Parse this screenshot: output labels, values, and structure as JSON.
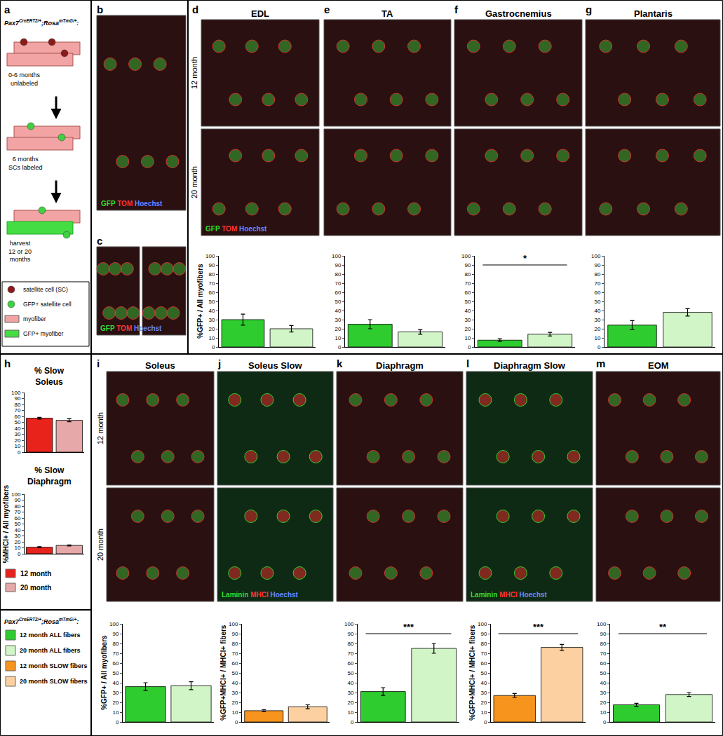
{
  "chart_data": [
    {
      "type": "bar",
      "title": "EDL",
      "y_label": "%GFP+ / All myofibers",
      "categories": [
        null,
        null
      ],
      "values": [
        30,
        20
      ],
      "errors": [
        6,
        3.5
      ],
      "colors": [
        "#2ecc2e",
        "#d2f5c8"
      ],
      "ylim": [
        0,
        100
      ],
      "yticks": [
        0,
        10,
        20,
        30,
        40,
        50,
        60,
        70,
        80,
        90,
        100
      ],
      "grid": false,
      "tick_labels": "y"
    },
    {
      "type": "bar",
      "title": "TA",
      "categories": [
        null,
        null
      ],
      "values": [
        25,
        16.5
      ],
      "errors": [
        5,
        2.5
      ],
      "colors": [
        "#2ecc2e",
        "#d2f5c8"
      ],
      "ylim": [
        0,
        100
      ],
      "yticks": [
        0,
        10,
        20,
        30,
        40,
        50,
        60,
        70,
        80,
        90,
        100
      ],
      "grid": false,
      "tick_labels": "y"
    },
    {
      "type": "bar",
      "title": "Gastrocnemius",
      "categories": [
        null,
        null
      ],
      "values": [
        7.5,
        14
      ],
      "errors": [
        1.5,
        2
      ],
      "colors": [
        "#2ecc2e",
        "#d2f5c8"
      ],
      "ylim": [
        0,
        100
      ],
      "yticks": [
        0,
        10,
        20,
        30,
        40,
        50,
        60,
        70,
        80,
        90,
        100
      ],
      "grid": false,
      "tick_labels": "y",
      "annotations": [
        {
          "text": "*"
        }
      ]
    },
    {
      "type": "bar",
      "title": "Plantaris",
      "categories": [
        null,
        null
      ],
      "values": [
        24,
        38
      ],
      "errors": [
        5,
        4
      ],
      "colors": [
        "#2ecc2e",
        "#d2f5c8"
      ],
      "ylim": [
        0,
        100
      ],
      "yticks": [
        0,
        10,
        20,
        30,
        40,
        50,
        60,
        70,
        80,
        90,
        100
      ],
      "grid": false,
      "tick_labels": "y"
    },
    {
      "type": "bar",
      "title": "% Slow Soleus",
      "categories": [
        null,
        null
      ],
      "values": [
        57,
        53.5
      ],
      "errors": [
        1.5,
        2.5
      ],
      "colors": [
        "#e8231c",
        "#e6a8a8"
      ],
      "ylim": [
        0,
        100
      ],
      "yticks": [
        0,
        10,
        20,
        30,
        40,
        50,
        60,
        70,
        80,
        90,
        100
      ],
      "grid": false,
      "tick_labels": "y"
    },
    {
      "type": "bar",
      "title": "% Slow Diaphragm",
      "y_label": "%MHCI+ / All myofibers",
      "categories": [
        null,
        null
      ],
      "values": [
        11,
        14
      ],
      "errors": [
        1,
        1
      ],
      "colors": [
        "#e8231c",
        "#e6a8a8"
      ],
      "ylim": [
        0,
        100
      ],
      "yticks": [
        0,
        10,
        20,
        30,
        40,
        50,
        60,
        70,
        80,
        90,
        100
      ],
      "grid": false,
      "tick_labels": "y"
    },
    {
      "type": "bar",
      "title": "Soleus",
      "y_label": "%GFP+ / All myofibers",
      "categories": [
        null,
        null
      ],
      "values": [
        36,
        37
      ],
      "errors": [
        4,
        4
      ],
      "colors": [
        "#2ecc2e",
        "#d2f5c8"
      ],
      "ylim": [
        0,
        100
      ],
      "yticks": [
        0,
        10,
        20,
        30,
        40,
        50,
        60,
        70,
        80,
        90,
        100
      ],
      "grid": false,
      "tick_labels": "y"
    },
    {
      "type": "bar",
      "title": "Soleus Slow",
      "y_label": "%GFP+MHCI+ / MHCI+ fibers",
      "categories": [
        null,
        null
      ],
      "values": [
        11.5,
        15.5
      ],
      "errors": [
        1,
        2
      ],
      "colors": [
        "#f7941d",
        "#fcd0a1"
      ],
      "ylim": [
        0,
        100
      ],
      "yticks": [
        0,
        10,
        20,
        30,
        40,
        50,
        60,
        70,
        80,
        90,
        100
      ],
      "grid": false,
      "tick_labels": "y"
    },
    {
      "type": "bar",
      "title": "Diaphragm",
      "categories": [
        null,
        null
      ],
      "values": [
        31,
        75
      ],
      "errors": [
        4,
        5
      ],
      "colors": [
        "#2ecc2e",
        "#d2f5c8"
      ],
      "ylim": [
        0,
        100
      ],
      "yticks": [
        0,
        10,
        20,
        30,
        40,
        50,
        60,
        70,
        80,
        90,
        100
      ],
      "grid": false,
      "tick_labels": "y",
      "annotations": [
        {
          "text": "***"
        }
      ]
    },
    {
      "type": "bar",
      "title": "Diaphragm Slow",
      "y_label": "%GFP+MHCI+ / MHCI+ fibers",
      "categories": [
        null,
        null
      ],
      "values": [
        27,
        76
      ],
      "errors": [
        2,
        3
      ],
      "colors": [
        "#f7941d",
        "#fcd0a1"
      ],
      "ylim": [
        0,
        100
      ],
      "yticks": [
        0,
        10,
        20,
        30,
        40,
        50,
        60,
        70,
        80,
        90,
        100
      ],
      "grid": false,
      "tick_labels": "y",
      "annotations": [
        {
          "text": "***"
        }
      ]
    },
    {
      "type": "bar",
      "title": "EOM",
      "categories": [
        null,
        null
      ],
      "values": [
        17.5,
        28
      ],
      "errors": [
        1.5,
        2
      ],
      "colors": [
        "#2ecc2e",
        "#d2f5c8"
      ],
      "ylim": [
        0,
        100
      ],
      "yticks": [
        0,
        10,
        20,
        30,
        40,
        50,
        60,
        70,
        80,
        90,
        100
      ],
      "grid": false,
      "tick_labels": "y",
      "annotations": [
        {
          "text": "**"
        }
      ]
    }
  ],
  "figure": {
    "genotype": [
      {
        "text": "Pax7"
      },
      {
        "text": "CreERT2/+",
        "sup": true
      },
      {
        "text": ";Rosa"
      },
      {
        "text": "mTmG/+",
        "sup": true
      },
      {
        "text": ":"
      }
    ],
    "schematic": {
      "letter": "a",
      "steps": [
        {
          "lines": [
            "0-6 months",
            "unlabeled"
          ]
        },
        {
          "lines": [
            "6 months",
            "SCs labeled"
          ]
        },
        {
          "lines": [
            "harvest",
            "12 or 20",
            "months"
          ]
        }
      ],
      "key": [
        {
          "text": "satellite cell (SC)",
          "marker": "circle",
          "color": "#8b1a1a"
        },
        {
          "text": "GFP+ satellite cell",
          "marker": "circle",
          "color": "#3fd13f"
        },
        {
          "text": "myofiber",
          "marker": "square",
          "color": "#f2a3a3"
        },
        {
          "text": "GFP+ myofiber",
          "marker": "square",
          "color": "#44dd44"
        }
      ]
    },
    "image_panels": [
      {
        "letter": "b",
        "stains": [
          {
            "text": "GFP",
            "color": "#33dd33"
          },
          {
            "text": "TOM",
            "color": "#ff3333"
          },
          {
            "text": "Hoechst",
            "color": "#6688ff"
          }
        ]
      },
      {
        "letter": "c",
        "stains": [
          {
            "text": "GFP",
            "color": "#33dd33"
          },
          {
            "text": "TOM",
            "color": "#ff3333"
          },
          {
            "text": "Hoechst",
            "color": "#6688ff"
          }
        ]
      },
      {
        "letter": "d",
        "stains": [
          {
            "text": "GFP",
            "color": "#33dd33"
          },
          {
            "text": "TOM",
            "color": "#ff3333"
          },
          {
            "text": "Hoechst",
            "color": "#6688ff"
          }
        ]
      },
      {
        "letter": "e"
      },
      {
        "letter": "f"
      },
      {
        "letter": "g"
      },
      {
        "letter": "i"
      },
      {
        "letter": "j",
        "stains": [
          {
            "text": "Laminin",
            "color": "#33dd33"
          },
          {
            "text": "MHCI",
            "color": "#ff3333"
          },
          {
            "text": "Hoechst",
            "color": "#6688ff"
          }
        ]
      },
      {
        "letter": "k"
      },
      {
        "letter": "l",
        "stains": [
          {
            "text": "Laminin",
            "color": "#33dd33"
          },
          {
            "text": "MHCI",
            "color": "#ff3333"
          },
          {
            "text": "Hoechst",
            "color": "#6688ff"
          }
        ]
      },
      {
        "letter": "m"
      }
    ],
    "row_labels": [
      "12 month",
      "20 month"
    ],
    "h_panel": {
      "letter": "h",
      "legend": [
        {
          "text": "12 month",
          "color": "#e8231c"
        },
        {
          "text": "20 month",
          "color": "#e6a8a8"
        }
      ]
    },
    "legend": [
      {
        "text": "12 month ALL fibers",
        "color": "#2ecc2e"
      },
      {
        "text": "20 month ALL fibers",
        "color": "#d2f5c8"
      },
      {
        "text": "12 month SLOW fibers",
        "color": "#f7941d"
      },
      {
        "text": "20 month SLOW fibers",
        "color": "#fcd0a1"
      }
    ]
  }
}
